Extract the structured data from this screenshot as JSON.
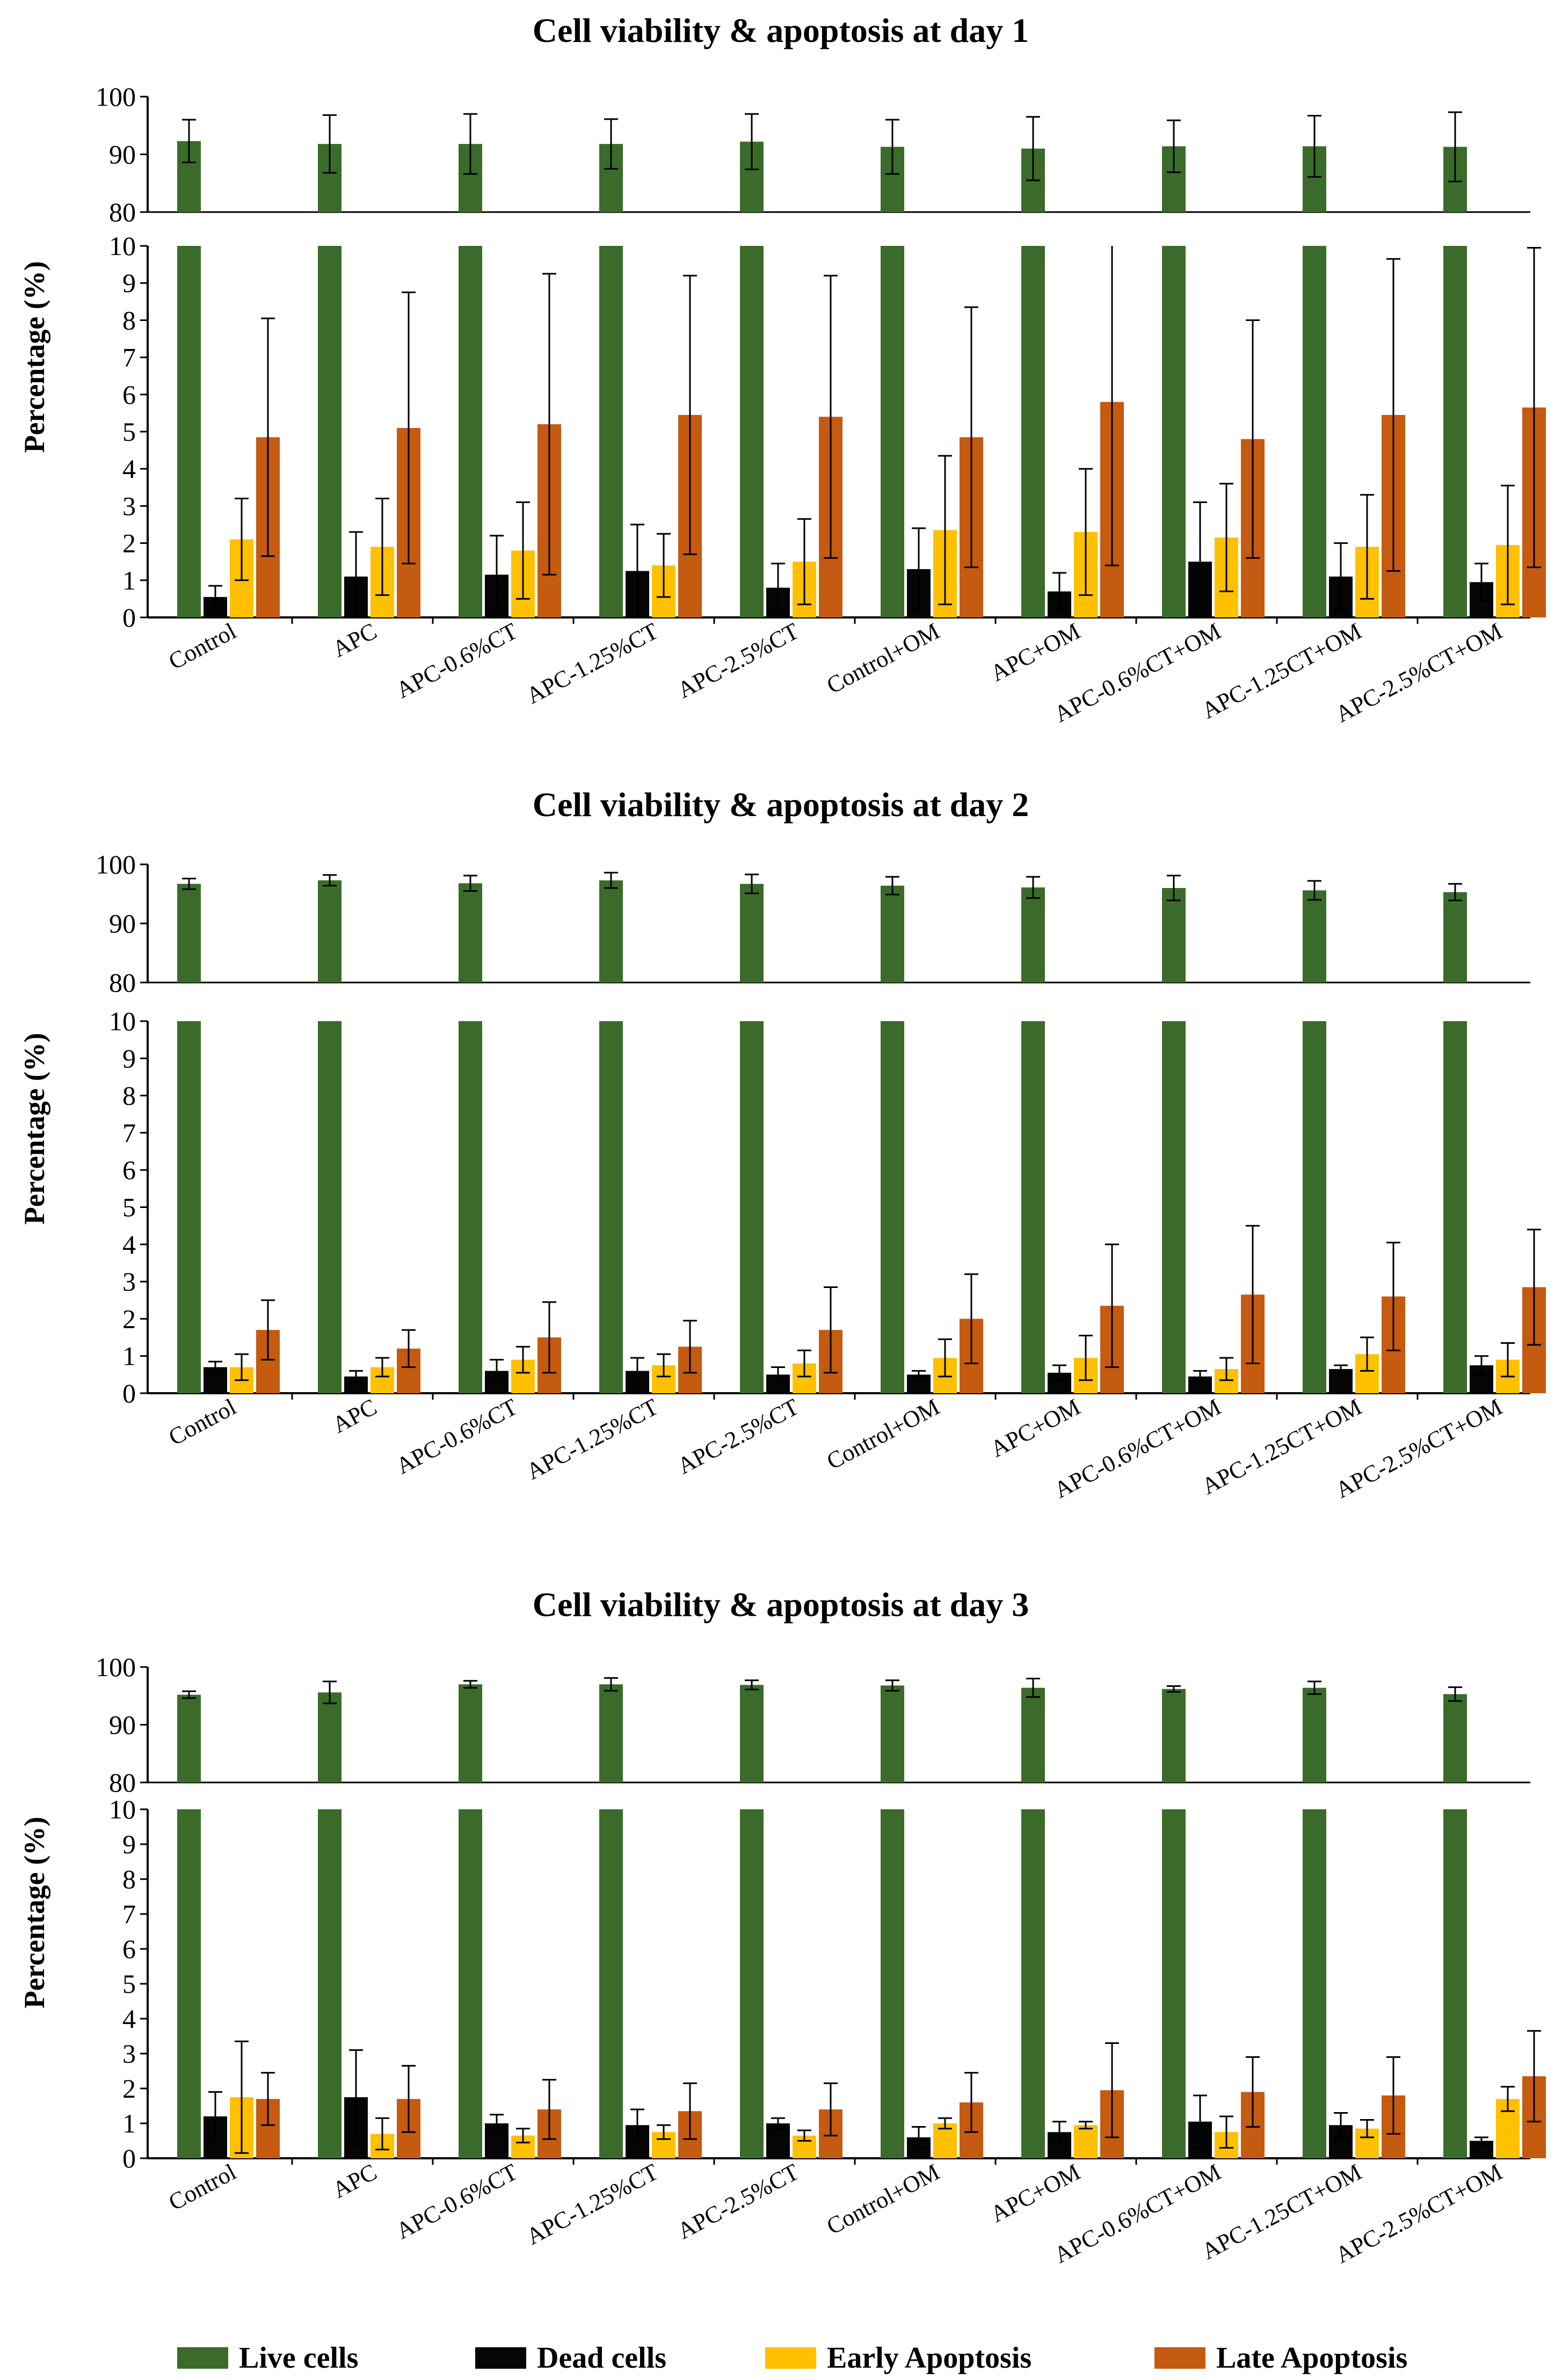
{
  "chart_data": [
    {
      "type": "bar",
      "title": "Cell viability & apoptosis at day 1",
      "ylabel": "Percentage (%)",
      "xlabel": "",
      "axis_break": {
        "lower": [
          0,
          10
        ],
        "upper": [
          80,
          100
        ]
      },
      "lower_ticks": [
        "0",
        "1",
        "2",
        "3",
        "4",
        "5",
        "6",
        "7",
        "8",
        "9",
        "10"
      ],
      "upper_ticks": [
        "80",
        "90",
        "100"
      ],
      "categories": [
        "Control",
        "APC",
        "APC-0.6%CT",
        "APC-1.25%CT",
        "APC-2.5%CT",
        "Control+OM",
        "APC+OM",
        "APC-0.6%CT+OM",
        "APC-1.25CT+OM",
        "APC-2.5%CT+OM"
      ],
      "series": [
        {
          "name": "Live cells",
          "values": [
            92.3,
            91.8,
            91.8,
            91.8,
            92.2,
            91.3,
            91.0,
            91.4,
            91.4,
            91.3
          ],
          "errors": [
            3.7,
            5.0,
            5.2,
            4.3,
            4.8,
            4.7,
            5.5,
            4.5,
            5.3,
            6.0
          ]
        },
        {
          "name": "Dead cells",
          "values": [
            0.55,
            1.1,
            1.15,
            1.25,
            0.8,
            1.3,
            0.7,
            1.5,
            1.1,
            0.95
          ],
          "errors": [
            0.3,
            1.2,
            1.05,
            1.25,
            0.65,
            1.1,
            0.5,
            1.6,
            0.9,
            0.5
          ]
        },
        {
          "name": "Early Apoptosis",
          "values": [
            2.1,
            1.9,
            1.8,
            1.4,
            1.5,
            2.35,
            2.3,
            2.15,
            1.9,
            1.95
          ],
          "errors": [
            1.1,
            1.3,
            1.3,
            0.85,
            1.15,
            2.0,
            1.7,
            1.45,
            1.4,
            1.6
          ]
        },
        {
          "name": "Late Apoptosis",
          "values": [
            4.85,
            5.1,
            5.2,
            5.45,
            5.4,
            4.85,
            5.8,
            4.8,
            5.45,
            5.65
          ],
          "errors": [
            3.2,
            3.65,
            4.05,
            3.75,
            3.8,
            3.5,
            4.4,
            3.2,
            4.2,
            4.3
          ]
        }
      ]
    },
    {
      "type": "bar",
      "title": "Cell viability & apoptosis at day 2",
      "ylabel": "Percentage (%)",
      "xlabel": "",
      "axis_break": {
        "lower": [
          0,
          10
        ],
        "upper": [
          80,
          100
        ]
      },
      "lower_ticks": [
        "0",
        "1",
        "2",
        "3",
        "4",
        "5",
        "6",
        "7",
        "8",
        "9",
        "10"
      ],
      "upper_ticks": [
        "80",
        "90",
        "100"
      ],
      "categories": [
        "Control",
        "APC",
        "APC-0.6%CT",
        "APC-1.25%CT",
        "APC-2.5%CT",
        "Control+OM",
        "APC+OM",
        "APC-0.6%CT+OM",
        "APC-1.25CT+OM",
        "APC-2.5%CT+OM"
      ],
      "series": [
        {
          "name": "Live cells",
          "values": [
            96.7,
            97.3,
            96.8,
            97.3,
            96.7,
            96.4,
            96.1,
            96.0,
            95.6,
            95.3
          ],
          "errors": [
            0.9,
            0.9,
            1.3,
            1.3,
            1.6,
            1.5,
            1.8,
            2.1,
            1.6,
            1.4
          ]
        },
        {
          "name": "Dead cells",
          "values": [
            0.7,
            0.45,
            0.6,
            0.6,
            0.5,
            0.5,
            0.55,
            0.45,
            0.65,
            0.75
          ],
          "errors": [
            0.15,
            0.15,
            0.3,
            0.35,
            0.2,
            0.1,
            0.2,
            0.15,
            0.1,
            0.25
          ]
        },
        {
          "name": "Early Apoptosis",
          "values": [
            0.7,
            0.7,
            0.9,
            0.75,
            0.8,
            0.95,
            0.95,
            0.65,
            1.05,
            0.9
          ],
          "errors": [
            0.35,
            0.25,
            0.35,
            0.3,
            0.35,
            0.5,
            0.6,
            0.3,
            0.45,
            0.45
          ]
        },
        {
          "name": "Late Apoptosis",
          "values": [
            1.7,
            1.2,
            1.5,
            1.25,
            1.7,
            2.0,
            2.35,
            2.65,
            2.6,
            2.85
          ],
          "errors": [
            0.8,
            0.5,
            0.95,
            0.7,
            1.15,
            1.2,
            1.65,
            1.85,
            1.45,
            1.55
          ]
        }
      ]
    },
    {
      "type": "bar",
      "title": "Cell viability & apoptosis at day 3",
      "ylabel": "Percentage (%)",
      "xlabel": "",
      "axis_break": {
        "lower": [
          0,
          10
        ],
        "upper": [
          80,
          100
        ]
      },
      "lower_ticks": [
        "0",
        "1",
        "2",
        "3",
        "4",
        "5",
        "6",
        "7",
        "8",
        "9",
        "10"
      ],
      "upper_ticks": [
        "80",
        "90",
        "100"
      ],
      "categories": [
        "Control",
        "APC",
        "APC-0.6%CT",
        "APC-1.25%CT",
        "APC-2.5%CT",
        "Control+OM",
        "APC+OM",
        "APC-0.6%CT+OM",
        "APC-1.25CT+OM",
        "APC-2.5%CT+OM"
      ],
      "series": [
        {
          "name": "Live cells",
          "values": [
            95.2,
            95.6,
            97.0,
            97.0,
            96.9,
            96.8,
            96.4,
            96.2,
            96.4,
            95.3
          ],
          "errors": [
            0.6,
            1.9,
            0.6,
            1.1,
            0.8,
            0.9,
            1.6,
            0.5,
            1.1,
            1.2
          ]
        },
        {
          "name": "Dead cells",
          "values": [
            1.2,
            1.75,
            1.0,
            0.95,
            1.0,
            0.6,
            0.75,
            1.05,
            0.95,
            0.5
          ],
          "errors": [
            0.7,
            1.35,
            0.25,
            0.45,
            0.15,
            0.3,
            0.3,
            0.75,
            0.35,
            0.1
          ]
        },
        {
          "name": "Early Apoptosis",
          "values": [
            1.75,
            0.7,
            0.65,
            0.75,
            0.65,
            1.0,
            0.95,
            0.75,
            0.85,
            1.7
          ],
          "errors": [
            1.6,
            0.45,
            0.2,
            0.2,
            0.15,
            0.15,
            0.1,
            0.45,
            0.25,
            0.35
          ]
        },
        {
          "name": "Late Apoptosis",
          "values": [
            1.7,
            1.7,
            1.4,
            1.35,
            1.4,
            1.6,
            1.95,
            1.9,
            1.8,
            2.35
          ],
          "errors": [
            0.75,
            0.95,
            0.85,
            0.8,
            0.75,
            0.85,
            1.35,
            1.0,
            1.1,
            1.3
          ]
        }
      ]
    }
  ],
  "legend": [
    {
      "name": "Live cells",
      "color": "#3b6b2a"
    },
    {
      "name": "Dead cells",
      "color": "#050505"
    },
    {
      "name": "Early Apoptosis",
      "color": "#ffc000"
    },
    {
      "name": "Late Apoptosis",
      "color": "#c55a11"
    }
  ]
}
